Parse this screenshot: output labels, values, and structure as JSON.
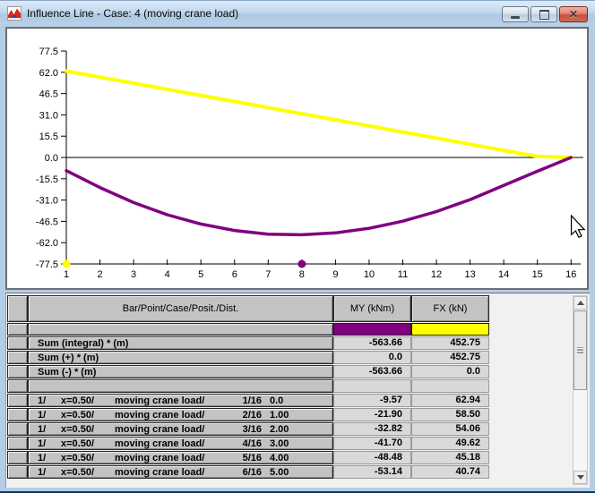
{
  "window": {
    "title": "Influence Line - Case: 4 (moving crane load)"
  },
  "colors": {
    "my": "#800080",
    "fx": "#ffff00",
    "axis": "#000000"
  },
  "chart_data": {
    "type": "line",
    "title": "",
    "xlabel": "",
    "ylabel": "",
    "x": [
      1,
      2,
      3,
      4,
      5,
      6,
      7,
      8,
      9,
      10,
      11,
      12,
      13,
      14,
      15,
      16
    ],
    "xticks": [
      "1",
      "2",
      "3",
      "4",
      "5",
      "6",
      "7",
      "8",
      "9",
      "10",
      "11",
      "12",
      "13",
      "14",
      "15",
      "16"
    ],
    "yticks": [
      "77.5",
      "62.0",
      "46.5",
      "31.0",
      "15.5",
      "0.0",
      "-15.5",
      "-31.0",
      "-46.5",
      "-62.0",
      "-77.5"
    ],
    "ylim": [
      -77.5,
      77.5
    ],
    "grid": false,
    "legend_position": "none",
    "series": [
      {
        "name": "FX (kN)",
        "color": "#ffff00",
        "values": [
          62.94,
          58.5,
          54.06,
          49.62,
          45.18,
          40.74,
          36.3,
          31.86,
          27.42,
          22.98,
          18.54,
          14.1,
          9.66,
          5.22,
          0.78,
          0.0
        ]
      },
      {
        "name": "MY (kNm)",
        "color": "#800080",
        "values": [
          -9.57,
          -21.9,
          -32.82,
          -41.7,
          -48.48,
          -53.14,
          -55.8,
          -56.3,
          -54.9,
          -51.6,
          -46.4,
          -39.4,
          -30.7,
          -20.4,
          -10.0,
          0.0
        ]
      }
    ],
    "baseline_markers": [
      {
        "x": 1,
        "color": "#ffff00"
      },
      {
        "x": 8,
        "color": "#800080"
      }
    ]
  },
  "table": {
    "headers": {
      "label": "Bar/Point/Case/Posit./Dist.",
      "my": "MY (kNm)",
      "fx": "FX (kN)"
    },
    "rows": [
      {
        "type": "color",
        "label": "",
        "my": "",
        "fx": ""
      },
      {
        "type": "summary",
        "label": "Sum (integral) * (m)",
        "my": "-563.66",
        "fx": "452.75"
      },
      {
        "type": "summary",
        "label": "Sum (+) * (m)",
        "my": "0.0",
        "fx": "452.75"
      },
      {
        "type": "summary",
        "label": "Sum (-) * (m)",
        "my": "-563.66",
        "fx": "0.0"
      },
      {
        "type": "empty",
        "label": "",
        "my": "",
        "fx": ""
      },
      {
        "type": "data",
        "bar": "1/",
        "x": "x=0.50/",
        "case": "moving crane load/",
        "pos": "1/16",
        "dist": "0.0",
        "my": "-9.57",
        "fx": "62.94"
      },
      {
        "type": "data",
        "bar": "1/",
        "x": "x=0.50/",
        "case": "moving crane load/",
        "pos": "2/16",
        "dist": "1.00",
        "my": "-21.90",
        "fx": "58.50"
      },
      {
        "type": "data",
        "bar": "1/",
        "x": "x=0.50/",
        "case": "moving crane load/",
        "pos": "3/16",
        "dist": "2.00",
        "my": "-32.82",
        "fx": "54.06"
      },
      {
        "type": "data",
        "bar": "1/",
        "x": "x=0.50/",
        "case": "moving crane load/",
        "pos": "4/16",
        "dist": "3.00",
        "my": "-41.70",
        "fx": "49.62"
      },
      {
        "type": "data",
        "bar": "1/",
        "x": "x=0.50/",
        "case": "moving crane load/",
        "pos": "5/16",
        "dist": "4.00",
        "my": "-48.48",
        "fx": "45.18"
      },
      {
        "type": "data",
        "bar": "1/",
        "x": "x=0.50/",
        "case": "moving crane load/",
        "pos": "6/16",
        "dist": "5.00",
        "my": "-53.14",
        "fx": "40.74"
      }
    ]
  }
}
